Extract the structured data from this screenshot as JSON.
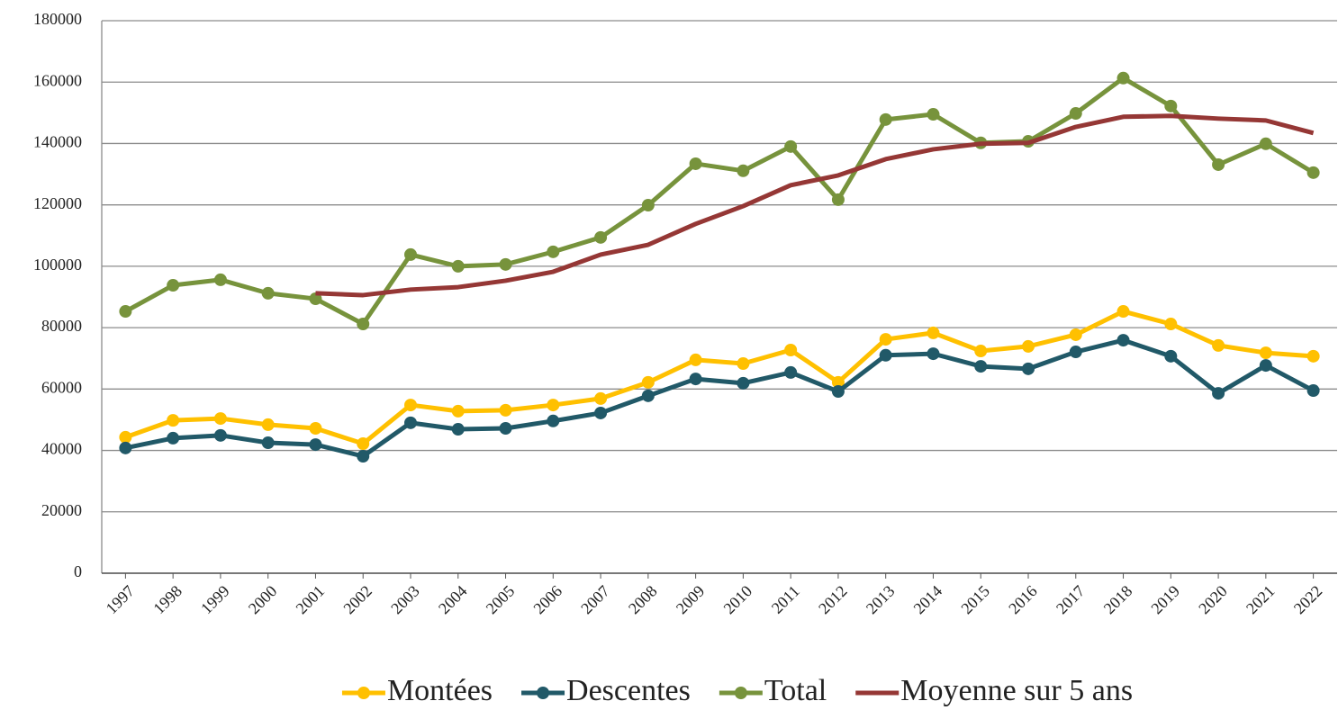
{
  "chart_data": {
    "type": "line",
    "categories": [
      "1997",
      "1998",
      "1999",
      "2000",
      "2001",
      "2002",
      "2003",
      "2004",
      "2005",
      "2006",
      "2007",
      "2008",
      "2009",
      "2010",
      "2011",
      "2012",
      "2013",
      "2014",
      "2015",
      "2016",
      "2017",
      "2018",
      "2019",
      "2020",
      "2021",
      "2022"
    ],
    "series": [
      {
        "name": "Montées",
        "color": "#ffc000",
        "marker": true,
        "values": [
          44300,
          49800,
          50400,
          48400,
          47200,
          42200,
          54800,
          52800,
          53100,
          54800,
          56900,
          62200,
          69500,
          68300,
          72700,
          62200,
          76200,
          78300,
          72400,
          73900,
          77700,
          85300,
          81200,
          74200,
          71800,
          70700
        ]
      },
      {
        "name": "Descentes",
        "color": "#215968",
        "marker": true,
        "values": [
          40800,
          44000,
          44900,
          42500,
          41900,
          38100,
          49000,
          46900,
          47200,
          49600,
          52200,
          57800,
          63300,
          61900,
          65400,
          59200,
          71000,
          71500,
          67400,
          66600,
          72100,
          75900,
          70700,
          58600,
          67700,
          59500
        ]
      },
      {
        "name": "Total",
        "color": "#77933c",
        "marker": true,
        "values": [
          85300,
          93800,
          95600,
          91200,
          89400,
          81200,
          103800,
          100000,
          100600,
          104700,
          109400,
          119900,
          133400,
          131100,
          139000,
          121700,
          147800,
          149500,
          140200,
          140700,
          149800,
          161300,
          152200,
          133100,
          139900,
          130500
        ]
      },
      {
        "name": "Moyenne sur 5 ans",
        "color": "#953735",
        "marker": false,
        "values": [
          null,
          null,
          null,
          null,
          91200,
          90600,
          92400,
          93200,
          95300,
          98200,
          103800,
          107000,
          113800,
          119600,
          126400,
          129600,
          134900,
          138100,
          139900,
          140200,
          145400,
          148700,
          149000,
          148100,
          147500,
          143400
        ]
      }
    ],
    "ylim": [
      0,
      180000
    ],
    "yticks": [
      0,
      20000,
      40000,
      60000,
      80000,
      100000,
      120000,
      140000,
      160000,
      180000
    ],
    "grid": true,
    "legend": "bottom"
  }
}
